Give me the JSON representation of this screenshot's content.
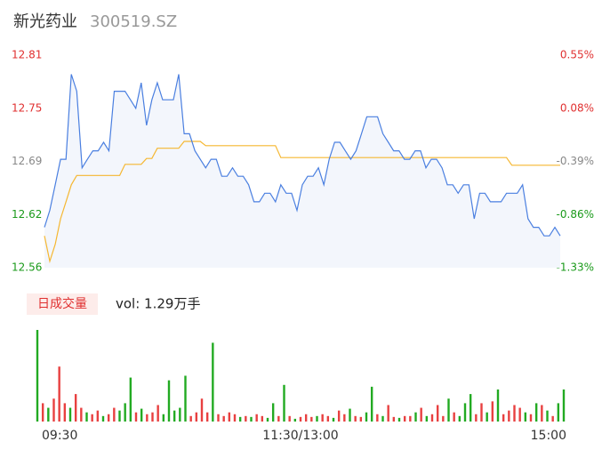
{
  "header": {
    "name": "新光药业",
    "code": "300519.SZ"
  },
  "chart_data": {
    "type": "intraday",
    "categories": [
      "09:30",
      null,
      null,
      null,
      null,
      null,
      null,
      null,
      null,
      null,
      null,
      null,
      null,
      null,
      null,
      null,
      null,
      null,
      null,
      null,
      null,
      null,
      null,
      null,
      null,
      null,
      null,
      null,
      null,
      null,
      null,
      null,
      null,
      null,
      null,
      null,
      null,
      null,
      null,
      null,
      null,
      null,
      null,
      null,
      null,
      null,
      null,
      null,
      "11:30/13:00",
      null,
      null,
      null,
      null,
      null,
      null,
      null,
      null,
      null,
      null,
      null,
      null,
      null,
      null,
      null,
      null,
      null,
      null,
      null,
      null,
      null,
      null,
      null,
      null,
      null,
      null,
      null,
      null,
      null,
      null,
      null,
      null,
      null,
      null,
      null,
      null,
      null,
      null,
      null,
      null,
      null,
      null,
      null,
      null,
      null,
      null,
      null,
      "15:00"
    ],
    "price": {
      "color": "#4a7fe0",
      "fill": "#f3f6fc",
      "values": [
        12.61,
        12.63,
        12.66,
        12.69,
        12.69,
        12.79,
        12.77,
        12.68,
        12.69,
        12.7,
        12.7,
        12.71,
        12.7,
        12.77,
        12.77,
        12.77,
        12.76,
        12.75,
        12.78,
        12.73,
        12.76,
        12.78,
        12.76,
        12.76,
        12.76,
        12.79,
        12.72,
        12.72,
        12.7,
        12.69,
        12.68,
        12.69,
        12.69,
        12.67,
        12.67,
        12.68,
        12.67,
        12.67,
        12.66,
        12.64,
        12.64,
        12.65,
        12.65,
        12.64,
        12.66,
        12.65,
        12.65,
        12.63,
        12.66,
        12.67,
        12.67,
        12.68,
        12.66,
        12.69,
        12.71,
        12.71,
        12.7,
        12.69,
        12.7,
        12.72,
        12.74,
        12.74,
        12.74,
        12.72,
        12.71,
        12.7,
        12.7,
        12.69,
        12.69,
        12.7,
        12.7,
        12.68,
        12.69,
        12.69,
        12.68,
        12.66,
        12.66,
        12.65,
        12.66,
        12.66,
        12.62,
        12.65,
        12.65,
        12.64,
        12.64,
        12.64,
        12.65,
        12.65,
        12.65,
        12.66,
        12.62,
        12.61,
        12.61,
        12.6,
        12.6,
        12.61,
        12.6
      ]
    },
    "average": {
      "color": "#f5b731",
      "values": [
        12.6,
        12.57,
        12.59,
        12.62,
        12.64,
        12.66,
        12.671,
        12.671,
        12.671,
        12.671,
        12.671,
        12.671,
        12.671,
        12.671,
        12.671,
        12.684,
        12.684,
        12.684,
        12.684,
        12.691,
        12.691,
        12.703,
        12.703,
        12.703,
        12.703,
        12.703,
        12.711,
        12.711,
        12.711,
        12.711,
        12.706,
        12.706,
        12.706,
        12.706,
        12.706,
        12.706,
        12.706,
        12.706,
        12.706,
        12.706,
        12.706,
        12.706,
        12.706,
        12.706,
        12.692,
        12.692,
        12.692,
        12.692,
        12.692,
        12.692,
        12.692,
        12.692,
        12.692,
        12.692,
        12.692,
        12.692,
        12.692,
        12.692,
        12.692,
        12.692,
        12.692,
        12.692,
        12.692,
        12.692,
        12.692,
        12.692,
        12.692,
        12.692,
        12.692,
        12.692,
        12.692,
        12.692,
        12.692,
        12.692,
        12.692,
        12.692,
        12.692,
        12.692,
        12.692,
        12.692,
        12.692,
        12.692,
        12.692,
        12.692,
        12.692,
        12.692,
        12.692,
        12.683,
        12.683,
        12.683,
        12.683,
        12.683,
        12.683,
        12.683,
        12.683,
        12.683,
        12.683
      ]
    },
    "ylim": [
      12.5625,
      12.8125
    ],
    "yticks": [
      {
        "value": 12.8125,
        "label": "12.81",
        "color": "#e03030"
      },
      {
        "value": 12.75,
        "label": "12.75",
        "color": "#e03030"
      },
      {
        "value": 12.6875,
        "label": "12.69",
        "color": "#888888"
      },
      {
        "value": 12.625,
        "label": "12.62",
        "color": "#1a9a1a"
      },
      {
        "value": 12.5625,
        "label": "12.56",
        "color": "#1a9a1a"
      }
    ],
    "y2lim": [
      -1.33,
      0.55
    ],
    "y2ticks": [
      {
        "value": 0.55,
        "label": "0.55%",
        "color": "#e03030"
      },
      {
        "value": 0.08,
        "label": "0.08%",
        "color": "#e03030"
      },
      {
        "value": -0.39,
        "label": "-0.39%",
        "color": "#888888"
      },
      {
        "value": -0.86,
        "label": "-0.86%",
        "color": "#1a9a1a"
      },
      {
        "value": -1.33,
        "label": "-1.33%",
        "color": "#1a9a1a"
      }
    ],
    "volume": {
      "label": "日成交量",
      "summary": "vol: 1.29万手",
      "up_color": "#e84040",
      "down_color": "#22aa22",
      "vlim": [
        0,
        100
      ],
      "values": [
        100,
        20,
        15,
        25,
        60,
        20,
        15,
        30,
        15,
        10,
        8,
        12,
        6,
        8,
        15,
        12,
        20,
        48,
        10,
        14,
        8,
        10,
        18,
        8,
        45,
        12,
        15,
        50,
        6,
        10,
        25,
        10,
        86,
        8,
        6,
        10,
        8,
        5,
        6,
        5,
        8,
        6,
        4,
        20,
        6,
        40,
        6,
        3,
        5,
        8,
        5,
        6,
        8,
        6,
        4,
        12,
        8,
        14,
        6,
        5,
        10,
        38,
        8,
        6,
        18,
        5,
        4,
        6,
        6,
        10,
        15,
        6,
        8,
        18,
        6,
        25,
        10,
        6,
        20,
        30,
        8,
        20,
        10,
        22,
        35,
        8,
        12,
        18,
        15,
        10,
        8,
        20,
        18,
        12,
        6,
        20,
        35
      ],
      "rising": [
        false,
        true,
        false,
        true,
        true,
        true,
        false,
        true,
        true,
        false,
        true,
        true,
        false,
        true,
        true,
        false,
        false,
        false,
        true,
        false,
        true,
        true,
        true,
        false,
        false,
        false,
        false,
        false,
        true,
        true,
        true,
        true,
        false,
        true,
        true,
        true,
        true,
        false,
        true,
        false,
        true,
        true,
        false,
        false,
        true,
        false,
        true,
        false,
        true,
        true,
        true,
        false,
        true,
        true,
        false,
        true,
        true,
        false,
        true,
        true,
        false,
        false,
        true,
        false,
        true,
        true,
        false,
        true,
        true,
        false,
        true,
        false,
        true,
        true,
        true,
        false,
        true,
        false,
        false,
        false,
        true,
        true,
        false,
        true,
        false,
        true,
        true,
        true,
        true,
        false,
        true,
        false,
        true,
        false,
        true,
        false,
        false
      ]
    }
  }
}
